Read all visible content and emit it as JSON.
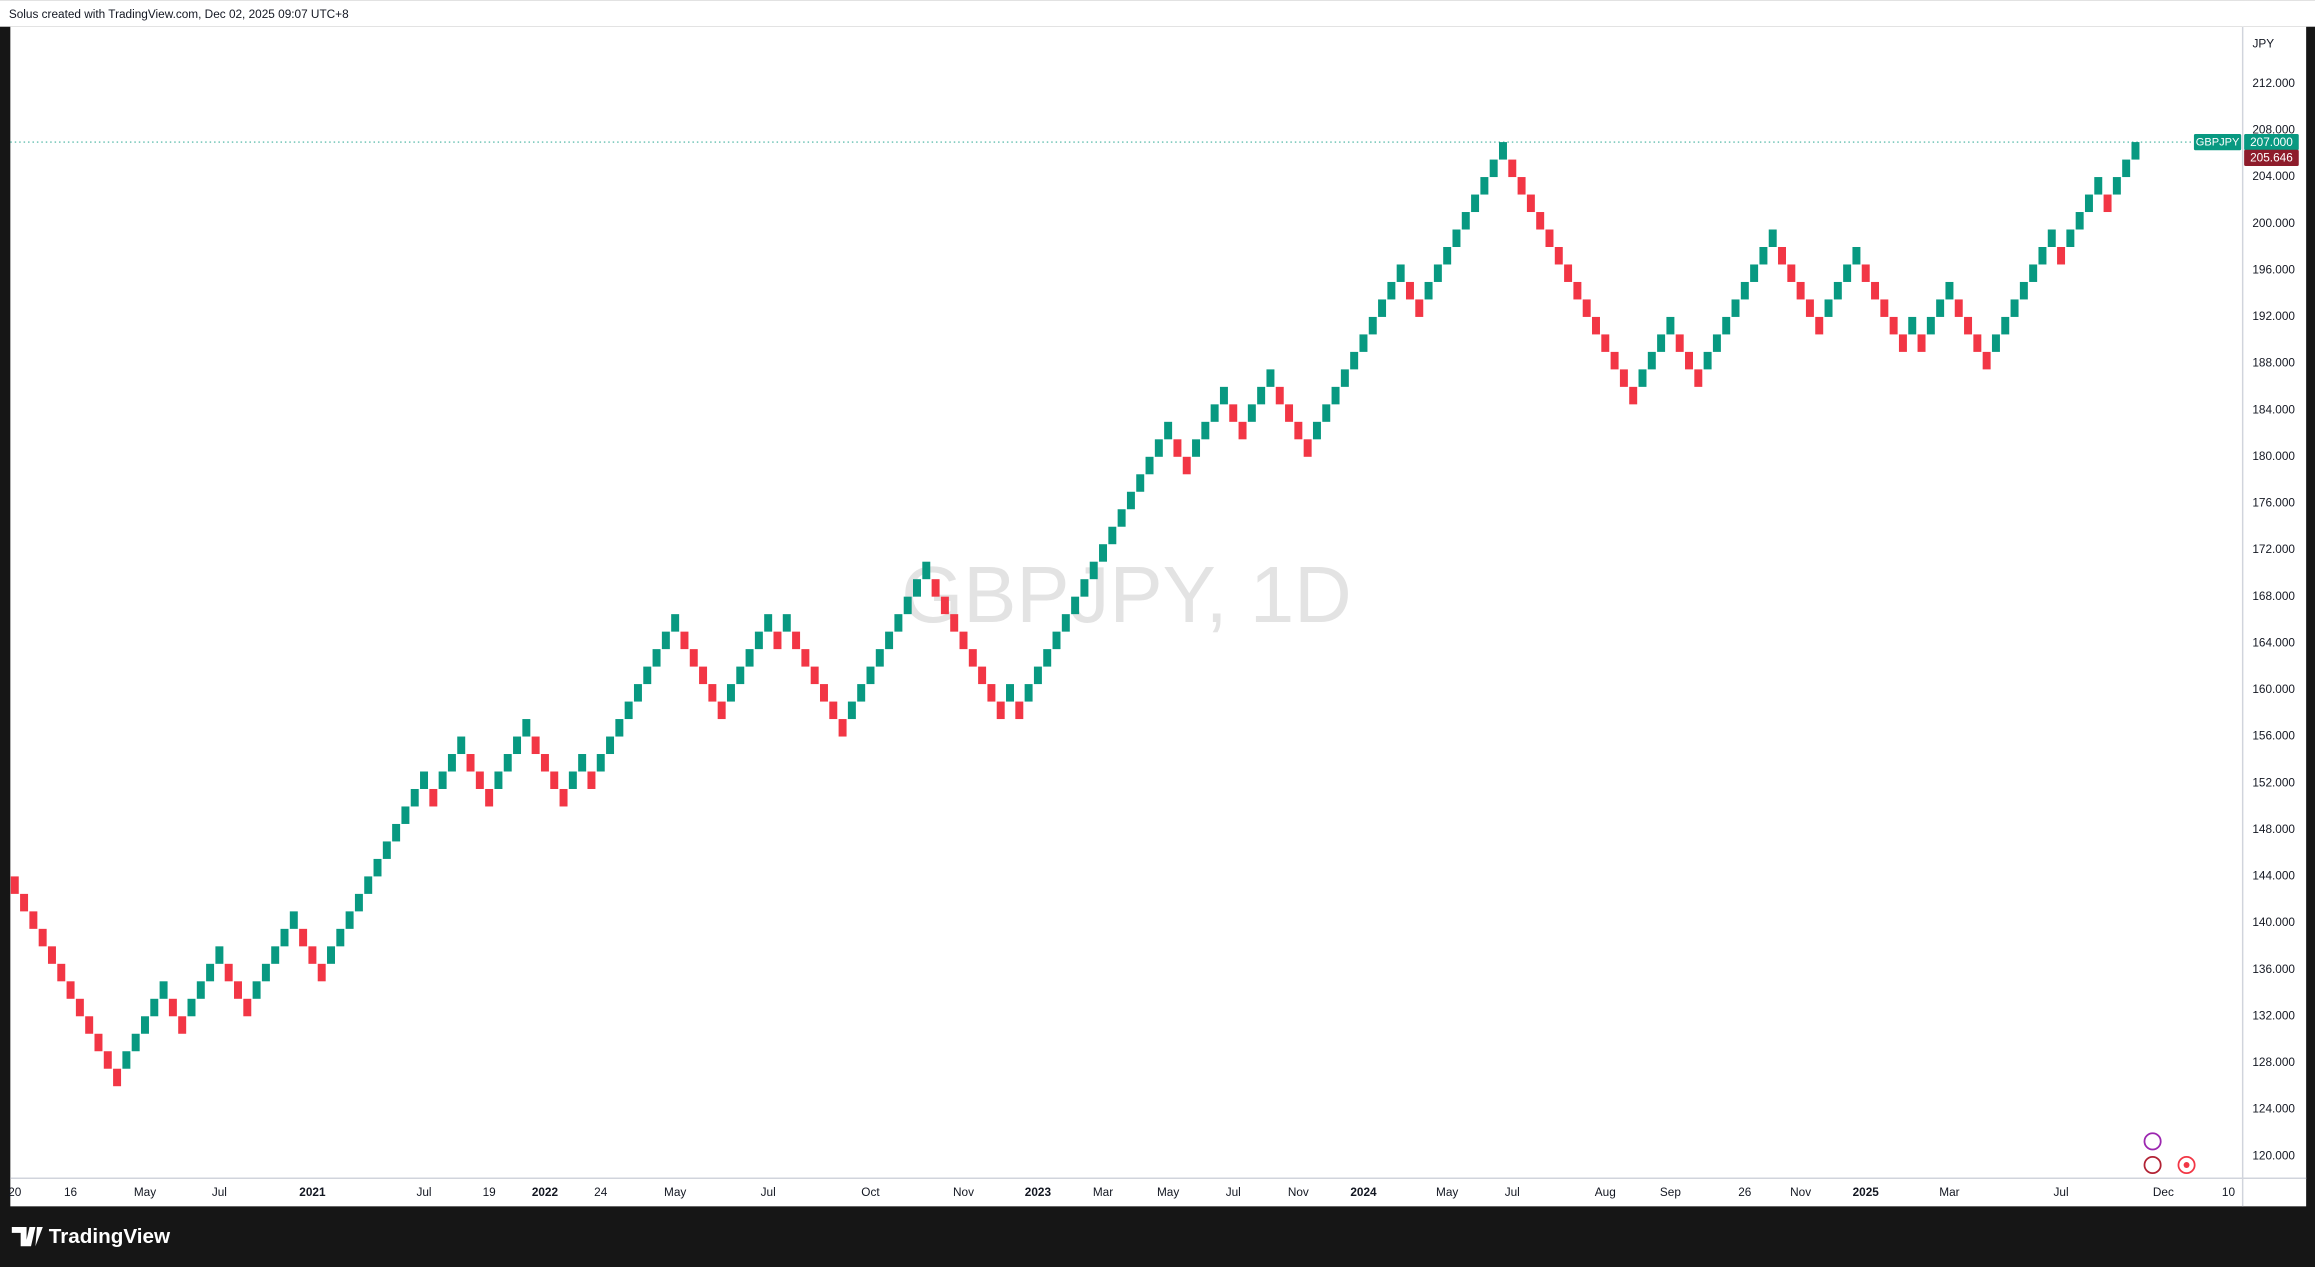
{
  "header": {
    "text": "Solus created with TradingView.com, Dec 02, 2025 09:07 UTC+8"
  },
  "chart_data": {
    "type": "renko",
    "watermark": "GBPJPY, 1D",
    "currency": "JPY",
    "symbol": "GBPJPY",
    "up_color": "#089981",
    "down_color": "#f23645",
    "grid": false,
    "ylim": [
      118.1,
      216.9
    ],
    "yticks": [
      {
        "value": 120,
        "label": "120.000"
      },
      {
        "value": 124,
        "label": "124.000"
      },
      {
        "value": 128,
        "label": "128.000"
      },
      {
        "value": 132,
        "label": "132.000"
      },
      {
        "value": 136,
        "label": "136.000"
      },
      {
        "value": 140,
        "label": "140.000"
      },
      {
        "value": 144,
        "label": "144.000"
      },
      {
        "value": 148,
        "label": "148.000"
      },
      {
        "value": 152,
        "label": "152.000"
      },
      {
        "value": 156,
        "label": "156.000"
      },
      {
        "value": 160,
        "label": "160.000"
      },
      {
        "value": 164,
        "label": "164.000"
      },
      {
        "value": 168,
        "label": "168.000"
      },
      {
        "value": 172,
        "label": "172.000"
      },
      {
        "value": 176,
        "label": "176.000"
      },
      {
        "value": 180,
        "label": "180.000"
      },
      {
        "value": 184,
        "label": "184.000"
      },
      {
        "value": 188,
        "label": "188.000"
      },
      {
        "value": 192,
        "label": "192.000"
      },
      {
        "value": 196,
        "label": "196.000"
      },
      {
        "value": 200,
        "label": "200.000"
      },
      {
        "value": 204,
        "label": "204.000"
      },
      {
        "value": 208,
        "label": "208.000"
      },
      {
        "value": 212,
        "label": "212.000"
      }
    ],
    "price_line": {
      "value": 207,
      "label": "207.000"
    },
    "last_price": 205.646,
    "categories": [
      "20",
      null,
      null,
      null,
      null,
      null,
      "16",
      null,
      null,
      null,
      null,
      null,
      null,
      null,
      "May",
      null,
      null,
      null,
      null,
      null,
      null,
      null,
      "Jul",
      null,
      null,
      null,
      null,
      null,
      null,
      null,
      null,
      null,
      "2021",
      null,
      null,
      null,
      null,
      null,
      null,
      null,
      null,
      null,
      null,
      null,
      "Jul",
      null,
      null,
      null,
      null,
      null,
      null,
      "19",
      null,
      null,
      null,
      null,
      null,
      "2022",
      null,
      null,
      null,
      null,
      null,
      "24",
      null,
      null,
      null,
      null,
      null,
      null,
      null,
      "May",
      null,
      null,
      null,
      null,
      null,
      null,
      null,
      null,
      null,
      "Jul",
      null,
      null,
      null,
      null,
      null,
      null,
      null,
      null,
      null,
      null,
      "Oct",
      null,
      null,
      null,
      null,
      null,
      null,
      null,
      null,
      null,
      "Nov",
      null,
      null,
      null,
      null,
      null,
      null,
      null,
      "2023",
      null,
      null,
      null,
      null,
      null,
      null,
      "Mar",
      null,
      null,
      null,
      null,
      null,
      null,
      "May",
      null,
      null,
      null,
      null,
      null,
      null,
      "Jul",
      null,
      null,
      null,
      null,
      null,
      null,
      "Nov",
      null,
      null,
      null,
      null,
      null,
      null,
      "2024",
      null,
      null,
      null,
      null,
      null,
      null,
      null,
      null,
      "May",
      null,
      null,
      null,
      null,
      null,
      null,
      "Jul",
      null,
      null,
      null,
      null,
      null,
      null,
      null,
      null,
      null,
      "Aug",
      null,
      null,
      null,
      null,
      null,
      null,
      "Sep",
      null,
      null,
      null,
      null,
      null,
      null,
      null,
      "26",
      null,
      null,
      null,
      null,
      null,
      "Nov",
      null,
      null,
      null,
      null,
      null,
      null,
      "2025",
      null,
      null,
      null,
      null,
      null,
      null,
      null,
      null,
      "Mar",
      null,
      null,
      null,
      null,
      null,
      null,
      null,
      null,
      null,
      null,
      null,
      "Jul",
      null,
      null,
      null,
      null,
      null,
      null,
      null,
      null,
      null,
      null,
      "Dec",
      null,
      null,
      null,
      null,
      null,
      null,
      "10"
    ],
    "open": [
      144,
      142.5,
      141,
      139.5,
      138,
      136.5,
      135,
      133.5,
      132,
      130.5,
      129,
      127.5,
      127.5,
      129,
      130.5,
      132,
      133.5,
      133.5,
      132,
      132,
      133.5,
      135,
      136.5,
      136.5,
      135,
      133.5,
      133.5,
      135,
      136.5,
      138,
      139.5,
      139.5,
      138,
      136.5,
      136.5,
      138,
      139.5,
      141,
      142.5,
      144,
      145.5,
      147,
      148.5,
      150,
      151.5,
      151.5,
      151.5,
      153,
      154.5,
      154.5,
      153,
      151.5,
      151.5,
      153,
      154.5,
      156,
      156,
      154.5,
      153,
      151.5,
      151.5,
      153,
      153,
      153,
      154.5,
      156,
      157.5,
      159,
      160.5,
      162,
      163.5,
      165,
      165,
      163.5,
      162,
      160.5,
      159,
      159,
      160.5,
      162,
      163.5,
      165,
      165,
      165,
      165,
      163.5,
      162,
      160.5,
      159,
      157.5,
      157.5,
      159,
      160.5,
      162,
      163.5,
      165,
      166.5,
      168,
      169.5,
      169.5,
      168,
      166.5,
      165,
      163.5,
      162,
      160.5,
      159,
      159,
      159,
      159,
      160.5,
      162,
      163.5,
      165,
      166.5,
      168,
      169.5,
      171,
      172.5,
      174,
      175.5,
      177,
      178.5,
      180,
      181.5,
      181.5,
      180,
      180,
      181.5,
      183,
      184.5,
      184.5,
      183,
      183,
      184.5,
      186,
      186,
      184.5,
      183,
      181.5,
      181.5,
      183,
      184.5,
      186,
      187.5,
      189,
      190.5,
      192,
      193.5,
      195,
      195,
      193.5,
      193.5,
      195,
      196.5,
      198,
      199.5,
      201,
      202.5,
      204,
      205.5,
      205.5,
      204,
      202.5,
      201,
      199.5,
      198,
      196.5,
      195,
      193.5,
      192,
      190.5,
      189,
      187.5,
      186,
      186,
      187.5,
      189,
      190.5,
      190.5,
      189,
      187.5,
      187.5,
      189,
      190.5,
      192,
      193.5,
      195,
      196.5,
      198,
      198,
      196.5,
      195,
      193.5,
      192,
      192,
      193.5,
      195,
      196.5,
      196.5,
      195,
      193.5,
      192,
      190.5,
      190.5,
      190.5,
      190.5,
      192,
      193.5,
      193.5,
      192,
      190.5,
      189,
      189,
      190.5,
      192,
      193.5,
      195,
      196.5,
      198,
      198,
      198,
      199.5,
      201,
      202.5,
      202.5,
      202.5,
      204,
      205.5,
      null,
      null,
      null,
      null,
      null,
      null,
      null,
      null,
      null,
      null
    ],
    "close": [
      142.5,
      141,
      139.5,
      138,
      136.5,
      135,
      133.5,
      132,
      130.5,
      129,
      127.5,
      126,
      129,
      130.5,
      132,
      133.5,
      135,
      132,
      130.5,
      133.5,
      135,
      136.5,
      138,
      135,
      133.5,
      132,
      135,
      136.5,
      138,
      139.5,
      141,
      138,
      136.5,
      135,
      138,
      139.5,
      141,
      142.5,
      144,
      145.5,
      147,
      148.5,
      150,
      151.5,
      153,
      150,
      153,
      154.5,
      156,
      153,
      151.5,
      150,
      153,
      154.5,
      156,
      157.5,
      154.5,
      153,
      151.5,
      150,
      153,
      154.5,
      151.5,
      154.5,
      156,
      157.5,
      159,
      160.5,
      162,
      163.5,
      165,
      166.5,
      163.5,
      162,
      160.5,
      159,
      157.5,
      160.5,
      162,
      163.5,
      165,
      166.5,
      163.5,
      166.5,
      163.5,
      162,
      160.5,
      159,
      157.5,
      156,
      159,
      160.5,
      162,
      163.5,
      165,
      166.5,
      168,
      169.5,
      171,
      168,
      166.5,
      165,
      163.5,
      162,
      160.5,
      159,
      157.5,
      160.5,
      157.5,
      160.5,
      162,
      163.5,
      165,
      166.5,
      168,
      169.5,
      171,
      172.5,
      174,
      175.5,
      177,
      178.5,
      180,
      181.5,
      183,
      180,
      178.5,
      181.5,
      183,
      184.5,
      186,
      183,
      181.5,
      184.5,
      186,
      187.5,
      184.5,
      183,
      181.5,
      180,
      183,
      184.5,
      186,
      187.5,
      189,
      190.5,
      192,
      193.5,
      195,
      196.5,
      193.5,
      192,
      195,
      196.5,
      198,
      199.5,
      201,
      202.5,
      204,
      205.5,
      207,
      204,
      202.5,
      201,
      199.5,
      198,
      196.5,
      195,
      193.5,
      192,
      190.5,
      189,
      187.5,
      186,
      184.5,
      187.5,
      189,
      190.5,
      192,
      189,
      187.5,
      186,
      189,
      190.5,
      192,
      193.5,
      195,
      196.5,
      198,
      199.5,
      196.5,
      195,
      193.5,
      192,
      190.5,
      193.5,
      195,
      196.5,
      198,
      195,
      193.5,
      192,
      190.5,
      189,
      192,
      189,
      192,
      193.5,
      195,
      192,
      190.5,
      189,
      187.5,
      190.5,
      192,
      193.5,
      195,
      196.5,
      198,
      199.5,
      196.5,
      199.5,
      201,
      202.5,
      204,
      201,
      204,
      205.5,
      207,
      null,
      null,
      null,
      null,
      null,
      null,
      null,
      null,
      null,
      null
    ]
  },
  "footer": {
    "logo": "TradingView"
  }
}
